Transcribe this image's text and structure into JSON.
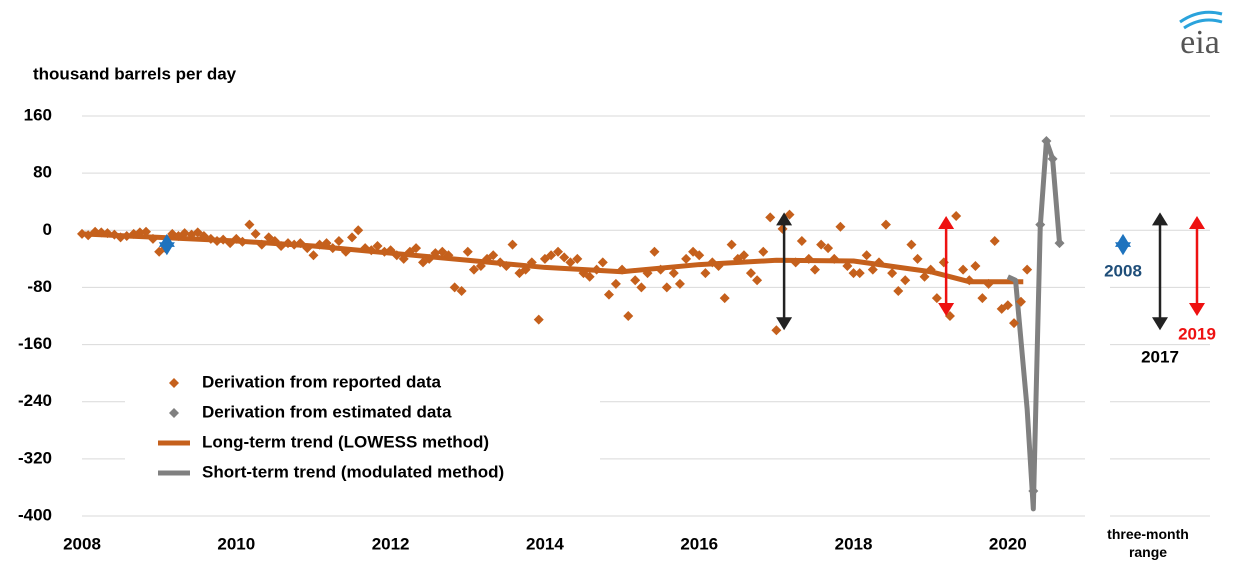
{
  "chart_data": {
    "type": "scatter",
    "y_label": "thousand barrels per day",
    "xlim": [
      2008,
      2021
    ],
    "xticks": [
      2008,
      2010,
      2012,
      2014,
      2016,
      2018,
      2020
    ],
    "ylim": [
      -400,
      160
    ],
    "yticks": [
      160,
      80,
      0,
      -80,
      -160,
      -240,
      -320,
      -400
    ],
    "grid": true,
    "series": [
      {
        "name": "Derivation from reported data",
        "type": "scatter",
        "color": "#c5601c",
        "x": [
          2008.0,
          2008.08,
          2008.17,
          2008.25,
          2008.33,
          2008.42,
          2008.5,
          2008.58,
          2008.67,
          2008.75,
          2008.83,
          2008.92,
          2009.0,
          2009.08,
          2009.17,
          2009.25,
          2009.33,
          2009.42,
          2009.5,
          2009.58,
          2009.67,
          2009.75,
          2009.83,
          2009.92,
          2010.0,
          2010.08,
          2010.17,
          2010.25,
          2010.33,
          2010.42,
          2010.5,
          2010.58,
          2010.67,
          2010.75,
          2010.83,
          2010.92,
          2011.0,
          2011.08,
          2011.17,
          2011.25,
          2011.33,
          2011.42,
          2011.5,
          2011.58,
          2011.67,
          2011.75,
          2011.83,
          2011.92,
          2012.0,
          2012.08,
          2012.17,
          2012.25,
          2012.33,
          2012.42,
          2012.5,
          2012.58,
          2012.67,
          2012.75,
          2012.83,
          2012.92,
          2013.0,
          2013.08,
          2013.17,
          2013.25,
          2013.33,
          2013.42,
          2013.5,
          2013.58,
          2013.67,
          2013.75,
          2013.83,
          2013.92,
          2014.0,
          2014.08,
          2014.17,
          2014.25,
          2014.33,
          2014.42,
          2014.5,
          2014.58,
          2014.67,
          2014.75,
          2014.83,
          2014.92,
          2015.0,
          2015.08,
          2015.17,
          2015.25,
          2015.33,
          2015.42,
          2015.5,
          2015.58,
          2015.67,
          2015.75,
          2015.83,
          2015.92,
          2016.0,
          2016.08,
          2016.17,
          2016.25,
          2016.33,
          2016.42,
          2016.5,
          2016.58,
          2016.67,
          2016.75,
          2016.83,
          2016.92,
          2017.0,
          2017.08,
          2017.17,
          2017.25,
          2017.33,
          2017.42,
          2017.5,
          2017.58,
          2017.67,
          2017.75,
          2017.83,
          2017.92,
          2018.0,
          2018.08,
          2018.17,
          2018.25,
          2018.33,
          2018.42,
          2018.5,
          2018.58,
          2018.67,
          2018.75,
          2018.83,
          2018.92,
          2019.0,
          2019.08,
          2019.17,
          2019.25,
          2019.33,
          2019.42,
          2019.5,
          2019.58,
          2019.67,
          2019.75,
          2019.83,
          2019.92,
          2020.0,
          2020.08,
          2020.17,
          2020.25
        ],
        "values": [
          -5,
          -7,
          -2,
          -3,
          -4,
          -6,
          -10,
          -8,
          -5,
          -3,
          -2,
          -12,
          -30,
          -25,
          -5,
          -8,
          -4,
          -6,
          -3,
          -8,
          -12,
          -15,
          -13,
          -18,
          -12,
          -16,
          8,
          -5,
          -20,
          -10,
          -15,
          -22,
          -18,
          -20,
          -18,
          -25,
          -35,
          -20,
          -18,
          -25,
          -15,
          -30,
          -10,
          0,
          -25,
          -28,
          -22,
          -30,
          -28,
          -35,
          -40,
          -30,
          -25,
          -45,
          -40,
          -32,
          -30,
          -35,
          -80,
          -85,
          -30,
          -55,
          -50,
          -40,
          -35,
          -45,
          -50,
          -20,
          -60,
          -55,
          -45,
          -125,
          -40,
          -35,
          -30,
          -38,
          -45,
          -40,
          -60,
          -65,
          -55,
          -45,
          -90,
          -75,
          -55,
          -120,
          -70,
          -80,
          -60,
          -30,
          -55,
          -80,
          -60,
          -75,
          -40,
          -30,
          -35,
          -60,
          -45,
          -50,
          -95,
          -20,
          -40,
          -35,
          -60,
          -70,
          -30,
          18,
          -140,
          2,
          22,
          -45,
          -15,
          -40,
          -55,
          -20,
          -25,
          -40,
          5,
          -50,
          -60,
          -60,
          -35,
          -55,
          -45,
          8,
          -60,
          -85,
          -70,
          -20,
          -40,
          -65,
          -55,
          -95,
          -45,
          -120,
          20,
          -55,
          -70,
          -50,
          -95,
          -75,
          -15,
          -110,
          -105,
          -130,
          -100,
          -55
        ]
      },
      {
        "name": "Derivation from estimated data",
        "type": "scatter",
        "color": "#808080",
        "x": [
          2020.33,
          2020.42,
          2020.5,
          2020.58,
          2020.67
        ],
        "values": [
          -365,
          8,
          125,
          100,
          -18
        ]
      },
      {
        "name": "Long-term trend (LOWESS method)",
        "type": "line",
        "color": "#c5601c",
        "x": [
          2008,
          2009,
          2010,
          2011,
          2012,
          2013,
          2014,
          2015,
          2016,
          2017,
          2018,
          2019,
          2019.5,
          2020.2
        ],
        "values": [
          -5,
          -10,
          -15,
          -22,
          -32,
          -42,
          -52,
          -58,
          -48,
          -42,
          -43,
          -58,
          -72,
          -72
        ]
      },
      {
        "name": "Short-term trend (modulated method)",
        "type": "line",
        "color": "#808080",
        "x": [
          2020.0,
          2020.1,
          2020.25,
          2020.33,
          2020.42,
          2020.5,
          2020.58,
          2020.67
        ],
        "values": [
          -65,
          -70,
          -250,
          -390,
          5,
          125,
          100,
          -18
        ]
      }
    ],
    "annotations": [
      {
        "label": "2008",
        "color": "#1e73be",
        "label_color": "#1f4e79",
        "x": 2009.1,
        "values": [
          -5,
          -35
        ]
      },
      {
        "label": "2017",
        "color": "#222222",
        "label_color": "#000000",
        "x": 2017.1,
        "values": [
          25,
          -140
        ]
      },
      {
        "label": "2019",
        "color": "#ee1111",
        "label_color": "#ee1111",
        "x": 2019.2,
        "values": [
          20,
          -120
        ]
      }
    ],
    "range_panel_label": "three-month range",
    "logo": "eia"
  }
}
